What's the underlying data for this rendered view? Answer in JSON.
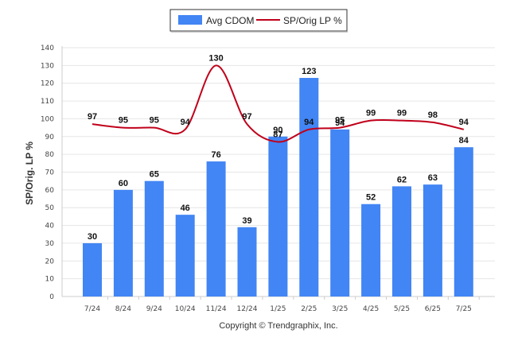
{
  "chart_data": {
    "type": "bar",
    "categories": [
      "7/24",
      "8/24",
      "9/24",
      "10/24",
      "11/24",
      "12/24",
      "1/25",
      "2/25",
      "3/25",
      "4/25",
      "5/25",
      "6/25",
      "7/25"
    ],
    "series": [
      {
        "name": "Avg CDOM",
        "type": "bar",
        "color": "#4285f4",
        "values": [
          30,
          60,
          65,
          46,
          76,
          39,
          90,
          123,
          94,
          52,
          62,
          63,
          84
        ]
      },
      {
        "name": "SP/Orig LP %",
        "type": "line",
        "color": "#c0001a",
        "values": [
          97,
          95,
          95,
          94,
          130,
          97,
          87,
          94,
          95,
          99,
          99,
          98,
          94
        ]
      }
    ],
    "title": "",
    "xlabel": "",
    "ylabel": "SP/Orig. LP %",
    "ylim": [
      0,
      140
    ],
    "yticks": [
      0,
      10,
      20,
      30,
      40,
      50,
      60,
      70,
      80,
      90,
      100,
      110,
      120,
      130,
      140
    ],
    "grid": true,
    "legend": "top-center"
  },
  "credit": "Copyright © Trendgraphix, Inc."
}
